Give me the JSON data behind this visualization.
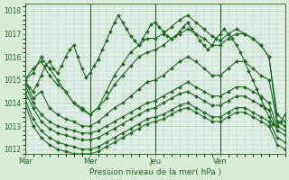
{
  "bg_color": "#d8ecd8",
  "plot_bg_color": "#e0ede8",
  "grid_color": "#b8d4b8",
  "line_color": "#1a6b1a",
  "xlabel": "Pression niveau de la mer( hPa )",
  "day_labels": [
    "Mar",
    "Mer",
    "Jeu",
    "Ven"
  ],
  "day_positions": [
    0,
    48,
    96,
    144
  ],
  "ylim": [
    1011.8,
    1018.3
  ],
  "yticks": [
    1012,
    1013,
    1014,
    1015,
    1016,
    1017,
    1018
  ],
  "xlim": [
    0,
    192
  ],
  "series": [
    {
      "x": [
        0,
        3,
        6,
        9,
        12,
        15,
        18,
        21,
        24,
        27,
        30,
        33,
        36,
        39,
        42,
        45,
        48,
        51,
        54,
        57,
        60,
        63,
        66,
        69,
        72,
        75,
        78,
        81,
        84,
        87,
        90,
        93,
        96,
        99,
        102,
        105,
        108,
        111,
        114,
        117,
        120,
        123,
        126,
        129,
        132,
        135,
        138,
        141,
        144,
        147,
        150,
        153,
        156,
        159,
        162,
        165,
        168,
        171,
        174,
        177,
        180,
        183,
        186,
        189,
        192
      ],
      "y": [
        1015.0,
        1014.7,
        1014.5,
        1014.8,
        1015.2,
        1015.6,
        1015.8,
        1015.5,
        1015.3,
        1015.6,
        1016.0,
        1016.3,
        1016.5,
        1016.0,
        1015.5,
        1015.1,
        1015.3,
        1015.6,
        1015.9,
        1016.3,
        1016.7,
        1017.1,
        1017.5,
        1017.8,
        1017.5,
        1017.2,
        1016.9,
        1016.7,
        1016.5,
        1016.8,
        1017.1,
        1017.4,
        1017.5,
        1017.3,
        1017.1,
        1016.9,
        1016.8,
        1016.9,
        1017.1,
        1017.3,
        1017.5,
        1017.2,
        1017.0,
        1016.7,
        1016.5,
        1016.3,
        1016.5,
        1016.8,
        1017.0,
        1017.2,
        1017.0,
        1016.8,
        1016.5,
        1016.2,
        1015.8,
        1015.4,
        1015.0,
        1014.6,
        1014.2,
        1013.8,
        1013.4,
        1013.1,
        1013.0,
        1013.2,
        1013.5
      ],
      "marker": "D",
      "markersize": 2.0,
      "linewidth": 0.8
    },
    {
      "x": [
        0,
        6,
        12,
        18,
        24,
        30,
        36,
        42,
        48,
        54,
        60,
        66,
        72,
        78,
        84,
        90,
        96,
        102,
        108,
        114,
        120,
        126,
        132,
        138,
        144,
        150,
        156,
        162,
        168,
        174,
        180,
        186,
        192
      ],
      "y": [
        1015.0,
        1015.5,
        1015.8,
        1015.2,
        1014.8,
        1014.5,
        1014.0,
        1013.7,
        1013.5,
        1013.8,
        1014.2,
        1014.8,
        1015.2,
        1015.6,
        1016.0,
        1016.2,
        1016.3,
        1016.5,
        1016.8,
        1017.0,
        1017.2,
        1017.0,
        1016.8,
        1016.5,
        1016.5,
        1016.8,
        1017.0,
        1017.0,
        1016.8,
        1016.5,
        1016.0,
        1013.5,
        1013.2
      ],
      "marker": "D",
      "markersize": 2.0,
      "linewidth": 0.8
    },
    {
      "x": [
        0,
        6,
        12,
        18,
        24,
        30,
        36,
        42,
        48,
        54,
        60,
        66,
        72,
        78,
        84,
        90,
        96,
        102,
        108,
        114,
        120,
        126,
        132,
        138,
        144,
        150,
        156,
        162,
        168,
        174,
        180,
        186,
        192
      ],
      "y": [
        1015.0,
        1015.3,
        1016.0,
        1015.5,
        1015.0,
        1014.5,
        1014.0,
        1013.8,
        1013.5,
        1013.8,
        1014.5,
        1015.2,
        1015.7,
        1016.2,
        1016.5,
        1016.8,
        1016.8,
        1017.0,
        1017.3,
        1017.6,
        1017.8,
        1017.5,
        1017.2,
        1016.9,
        1016.7,
        1017.0,
        1017.2,
        1017.0,
        1016.8,
        1016.5,
        1016.0,
        1013.2,
        1013.0
      ],
      "marker": "D",
      "markersize": 2.0,
      "linewidth": 0.8
    },
    {
      "x": [
        0,
        6,
        12,
        18,
        24,
        30,
        36,
        42,
        48,
        54,
        60,
        66,
        72,
        78,
        84,
        90,
        96,
        102,
        108,
        114,
        120,
        126,
        132,
        138,
        144,
        150,
        156,
        162,
        168,
        174,
        180,
        186,
        192
      ],
      "y": [
        1015.0,
        1014.2,
        1014.5,
        1013.8,
        1013.5,
        1013.3,
        1013.2,
        1013.0,
        1013.0,
        1013.2,
        1013.5,
        1013.8,
        1014.0,
        1014.3,
        1014.6,
        1014.9,
        1015.0,
        1015.2,
        1015.5,
        1015.8,
        1016.0,
        1015.8,
        1015.5,
        1015.2,
        1015.2,
        1015.5,
        1015.8,
        1015.8,
        1015.5,
        1015.2,
        1015.0,
        1013.2,
        1013.0
      ],
      "marker": "D",
      "markersize": 2.0,
      "linewidth": 0.8
    },
    {
      "x": [
        0,
        6,
        12,
        18,
        24,
        30,
        36,
        42,
        48,
        54,
        60,
        66,
        72,
        78,
        84,
        90,
        96,
        102,
        108,
        114,
        120,
        126,
        132,
        138,
        144,
        150,
        156,
        162,
        168,
        174,
        180,
        186,
        192
      ],
      "y": [
        1014.8,
        1014.0,
        1013.5,
        1013.2,
        1013.0,
        1012.9,
        1012.8,
        1012.7,
        1012.7,
        1012.8,
        1013.0,
        1013.2,
        1013.4,
        1013.6,
        1013.8,
        1014.0,
        1014.1,
        1014.3,
        1014.5,
        1014.7,
        1014.9,
        1014.7,
        1014.5,
        1014.3,
        1014.3,
        1014.5,
        1014.7,
        1014.7,
        1014.5,
        1014.3,
        1014.0,
        1013.0,
        1012.8
      ],
      "marker": "D",
      "markersize": 2.0,
      "linewidth": 0.8
    },
    {
      "x": [
        0,
        6,
        12,
        18,
        24,
        30,
        36,
        42,
        48,
        54,
        60,
        66,
        72,
        78,
        84,
        90,
        96,
        102,
        108,
        114,
        120,
        126,
        132,
        138,
        144,
        150,
        156,
        162,
        168,
        174,
        180,
        186,
        192
      ],
      "y": [
        1014.5,
        1013.8,
        1013.2,
        1012.9,
        1012.7,
        1012.6,
        1012.5,
        1012.4,
        1012.4,
        1012.5,
        1012.7,
        1012.9,
        1013.1,
        1013.3,
        1013.5,
        1013.7,
        1013.8,
        1014.0,
        1014.2,
        1014.4,
        1014.5,
        1014.3,
        1014.1,
        1013.9,
        1013.9,
        1014.1,
        1014.3,
        1014.3,
        1014.1,
        1013.9,
        1013.7,
        1012.8,
        1012.6
      ],
      "marker": "D",
      "markersize": 2.0,
      "linewidth": 0.8
    },
    {
      "x": [
        0,
        6,
        12,
        18,
        24,
        30,
        36,
        42,
        48,
        54,
        60,
        66,
        72,
        78,
        84,
        90,
        96,
        102,
        108,
        114,
        120,
        126,
        132,
        138,
        144,
        150,
        156,
        162,
        168,
        174,
        180,
        186,
        192
      ],
      "y": [
        1014.2,
        1013.3,
        1012.8,
        1012.5,
        1012.3,
        1012.2,
        1012.1,
        1012.0,
        1012.0,
        1012.1,
        1012.3,
        1012.5,
        1012.7,
        1012.9,
        1013.1,
        1013.3,
        1013.4,
        1013.5,
        1013.7,
        1013.9,
        1014.0,
        1013.8,
        1013.6,
        1013.4,
        1013.4,
        1013.6,
        1013.8,
        1013.8,
        1013.6,
        1013.4,
        1013.2,
        1012.5,
        1012.3
      ],
      "marker": "D",
      "markersize": 2.0,
      "linewidth": 0.8
    },
    {
      "x": [
        0,
        6,
        12,
        18,
        24,
        30,
        36,
        42,
        48,
        54,
        60,
        66,
        72,
        78,
        84,
        90,
        96,
        102,
        108,
        114,
        120,
        126,
        132,
        138,
        144,
        150,
        156,
        162,
        168,
        174,
        180,
        186,
        192
      ],
      "y": [
        1014.0,
        1013.0,
        1012.5,
        1012.2,
        1012.0,
        1011.9,
        1011.8,
        1011.8,
        1011.8,
        1011.9,
        1012.1,
        1012.3,
        1012.5,
        1012.7,
        1012.9,
        1013.1,
        1013.2,
        1013.3,
        1013.5,
        1013.7,
        1013.8,
        1013.6,
        1013.4,
        1013.2,
        1013.2,
        1013.4,
        1013.6,
        1013.6,
        1013.4,
        1013.2,
        1013.0,
        1012.2,
        1012.0
      ],
      "marker": "D",
      "markersize": 2.0,
      "linewidth": 0.8
    }
  ]
}
